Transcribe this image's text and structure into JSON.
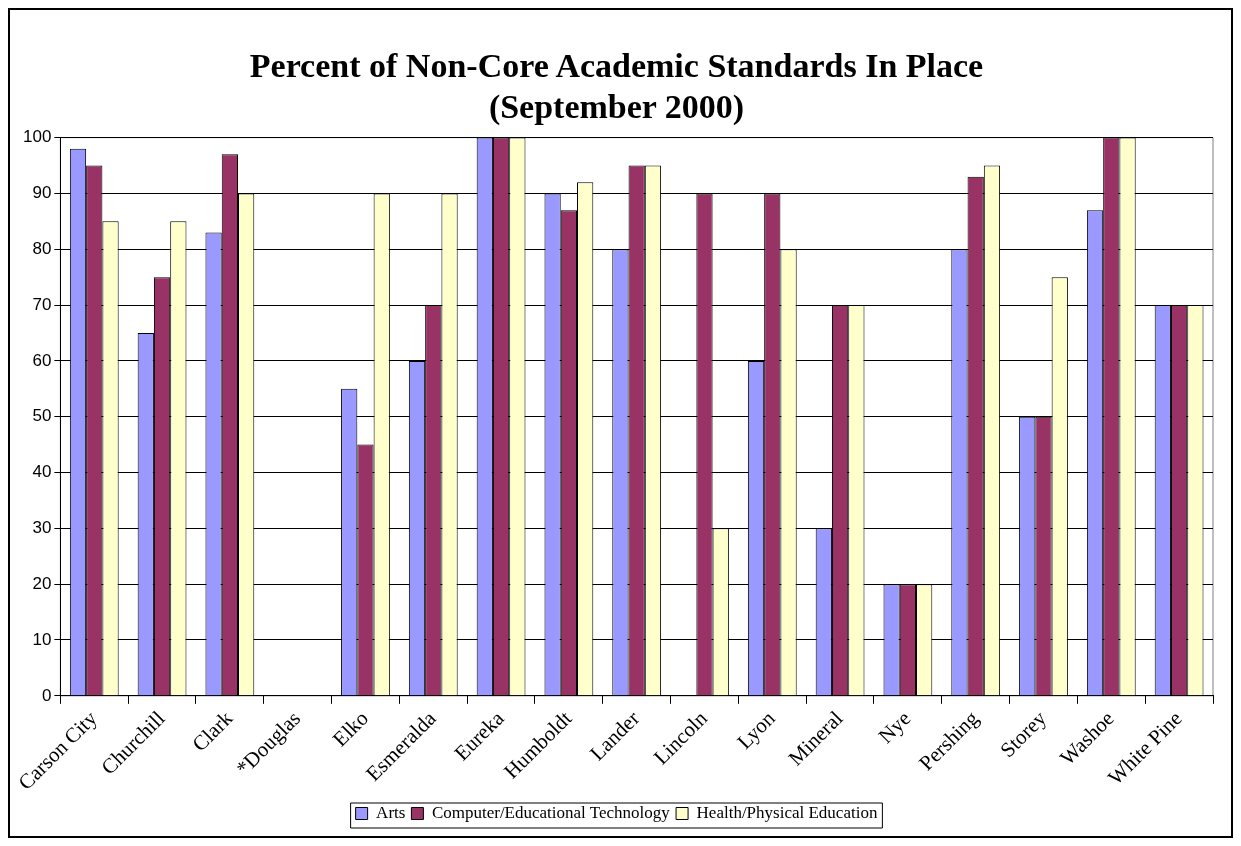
{
  "chart_data": {
    "type": "bar",
    "title": "Percent of Non-Core Academic Standards In Place\n(September 2000)",
    "categories": [
      "Carson City",
      "Churchill",
      "Clark",
      "*Douglas",
      "Elko",
      "Esmeralda",
      "Eureka",
      "Humboldt",
      "Lander",
      "Lincoln",
      "Lyon",
      "Mineral",
      "Nye",
      "Pershing",
      "Storey",
      "Washoe",
      "White Pine"
    ],
    "series": [
      {
        "name": "Arts",
        "color": "#9999ff",
        "values": [
          98,
          65,
          83,
          0,
          55,
          60,
          100,
          90,
          80,
          0,
          60,
          30,
          20,
          80,
          50,
          87,
          70
        ]
      },
      {
        "name": "Computer/Educational Technology",
        "color": "#993366",
        "values": [
          95,
          75,
          97,
          0,
          45,
          70,
          100,
          87,
          95,
          90,
          90,
          70,
          20,
          93,
          50,
          100,
          70
        ]
      },
      {
        "name": "Health/Physical Education",
        "color": "#ffffcc",
        "values": [
          85,
          85,
          90,
          0,
          90,
          90,
          100,
          92,
          95,
          30,
          80,
          70,
          20,
          95,
          75,
          100,
          70
        ]
      }
    ],
    "ylim": [
      0,
      100
    ],
    "yticks": [
      0,
      10,
      20,
      30,
      40,
      50,
      60,
      70,
      80,
      90,
      100
    ],
    "grid": "y",
    "legend": "bottom"
  }
}
